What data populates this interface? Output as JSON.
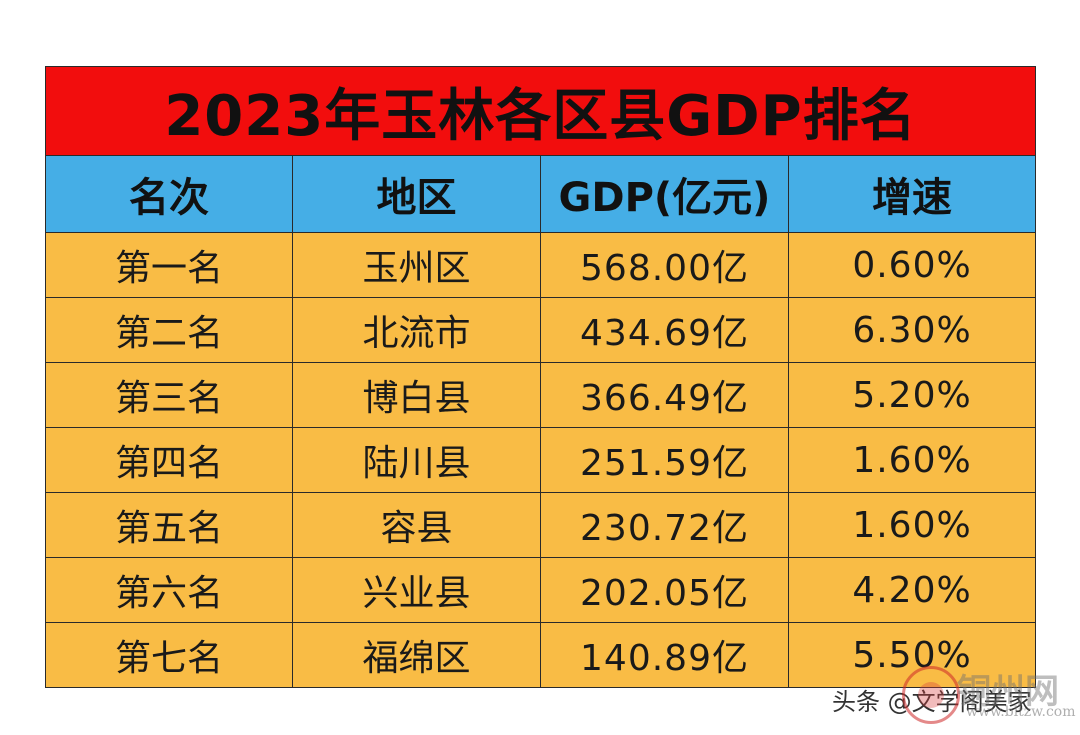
{
  "title": "2023年玉林各区县GDP排名",
  "columns": {
    "rank": "名次",
    "region": "地区",
    "gdp": "GDP(亿元)",
    "growth": "增速"
  },
  "rows": [
    {
      "rank": "第一名",
      "region": "玉州区",
      "gdp": "568.00亿",
      "growth": "0.60%"
    },
    {
      "rank": "第二名",
      "region": "北流市",
      "gdp": "434.69亿",
      "growth": "6.30%"
    },
    {
      "rank": "第三名",
      "region": "博白县",
      "gdp": "366.49亿",
      "growth": "5.20%"
    },
    {
      "rank": "第四名",
      "region": "陆川县",
      "gdp": "251.59亿",
      "growth": "1.60%"
    },
    {
      "rank": "第五名",
      "region": "容县",
      "gdp": "230.72亿",
      "growth": "1.60%"
    },
    {
      "rank": "第六名",
      "region": "兴业县",
      "gdp": "202.05亿",
      "growth": "4.20%"
    },
    {
      "rank": "第七名",
      "region": "福绵区",
      "gdp": "140.89亿",
      "growth": "5.50%"
    }
  ],
  "colors": {
    "title_bg": "#f20d0d",
    "header_bg": "#45aee6",
    "row_bg": "#f9bc45"
  },
  "watermark": {
    "source_text": "头条 @文学阁美家",
    "logo_text": "铜州网",
    "url_text": "www.bltzw.com",
    "seal_icon": "red-seal-icon"
  }
}
